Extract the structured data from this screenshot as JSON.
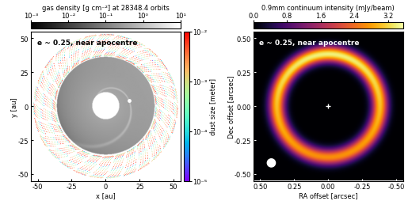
{
  "chart_data": [
    {
      "type": "simulation_map",
      "annotation": "e ~ 0.25, near apocentre",
      "xlabel": "x [au]",
      "ylabel": "y [au]",
      "xlim": [
        -55,
        55
      ],
      "ylim": [
        -55,
        55
      ],
      "xticks": [
        -50,
        -25,
        0,
        25,
        50
      ],
      "yticks": [
        -50,
        -25,
        0,
        25,
        50
      ],
      "gas_colorbar": {
        "label": "gas density [g cm⁻²] at 28348.4 orbits",
        "range": [
          0.001,
          10
        ],
        "ticks": [
          {
            "value": 0.001,
            "label": "10⁻³"
          },
          {
            "value": 0.01,
            "label": "10⁻²"
          },
          {
            "value": 0.1,
            "label": "10⁻¹"
          },
          {
            "value": 1,
            "label": "10⁰"
          },
          {
            "value": 10,
            "label": "10¹"
          }
        ]
      },
      "dust_colorbar": {
        "label": "dust size [meter]",
        "range": [
          1e-05,
          0.01
        ],
        "ticks": [
          {
            "value": 1e-05,
            "label": "10⁻⁵"
          },
          {
            "value": 0.0001,
            "label": "10⁻⁴"
          },
          {
            "value": 0.001,
            "label": "10⁻³"
          },
          {
            "value": 0.01,
            "label": "10⁻²"
          }
        ]
      },
      "cavity_radius": 10,
      "disc_outer_radius": 36,
      "disc_density": 0.3,
      "planet": [
        17,
        4
      ],
      "dust_ring": [
        37,
        53
      ]
    },
    {
      "type": "continuum_image",
      "annotation": "e ~ 0.25, near apocentre",
      "xlabel": "RA offset [arcsec]",
      "ylabel": "Dec offset [arcsec]",
      "xlim": [
        0.55,
        -0.55
      ],
      "ylim": [
        -0.55,
        0.55
      ],
      "xticks": [
        {
          "value": 0.5,
          "label": "0.50"
        },
        {
          "value": 0.25,
          "label": "0.25"
        },
        {
          "value": 0.0,
          "label": "0.00"
        },
        {
          "value": -0.25,
          "label": "-0.25"
        },
        {
          "value": -0.5,
          "label": "-0.50"
        }
      ],
      "yticks": [
        {
          "value": -0.5,
          "label": "-0.50"
        },
        {
          "value": -0.25,
          "label": "-0.25"
        },
        {
          "value": 0.0,
          "label": "0.00"
        },
        {
          "value": 0.25,
          "label": "0.25"
        },
        {
          "value": 0.5,
          "label": "0.50"
        }
      ],
      "colorbar": {
        "label": "0.9mm continuum intensity (mJy/beam)",
        "range": [
          0,
          3.55
        ],
        "ticks": [
          {
            "value": 0.0,
            "label": "0.0"
          },
          {
            "value": 0.8,
            "label": "0.8"
          },
          {
            "value": 1.6,
            "label": "1.6"
          },
          {
            "value": 2.4,
            "label": "2.4"
          },
          {
            "value": 3.2,
            "label": "3.2"
          }
        ]
      },
      "ring_radius": 0.38,
      "ring_width": 0.1,
      "peak_intensity": 3.4,
      "beam_diameter": 0.06
    }
  ]
}
